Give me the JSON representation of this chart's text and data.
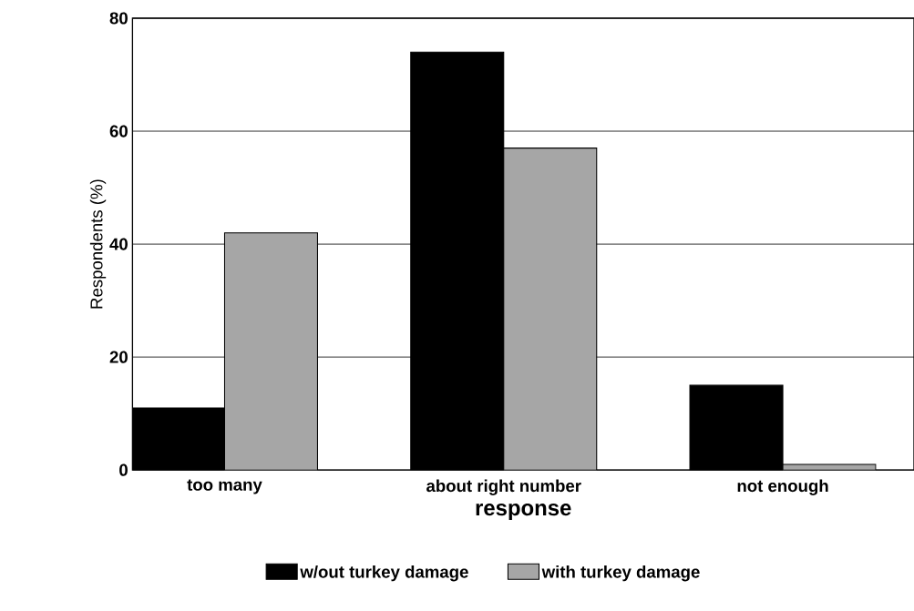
{
  "chart_data": {
    "type": "bar",
    "xlabel": "response",
    "ylabel": "Respondents (%)",
    "categories": [
      "too many",
      "about right number",
      "not enough"
    ],
    "series": [
      {
        "name": "w/out turkey damage",
        "color": "#000000",
        "values": [
          11,
          74,
          15
        ]
      },
      {
        "name": "with turkey damage",
        "color": "#a6a6a6",
        "values": [
          42,
          57,
          1
        ]
      }
    ],
    "ylim": [
      0,
      80
    ],
    "yticks": [
      0,
      20,
      40,
      60,
      80
    ],
    "grid": "y",
    "legend": "bottom"
  }
}
